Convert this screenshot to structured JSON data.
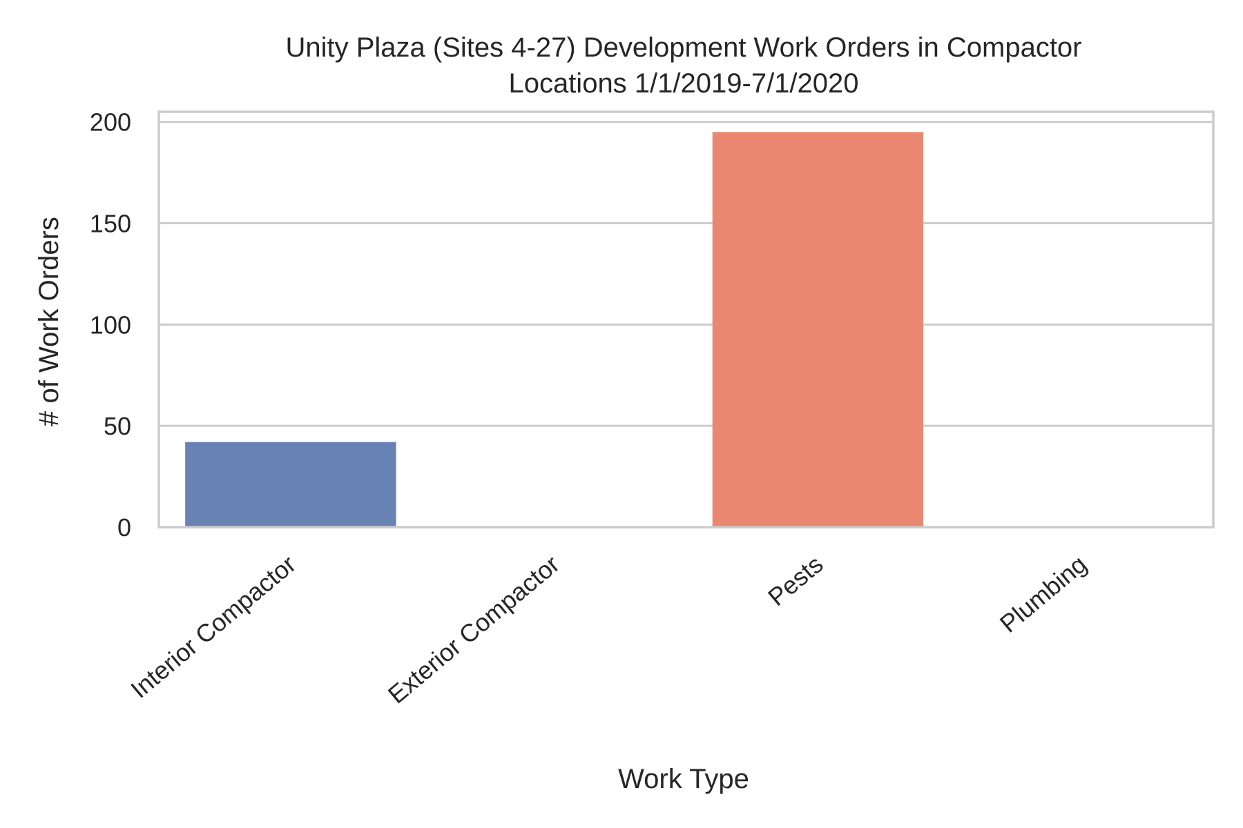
{
  "chart_data": {
    "type": "bar",
    "title": "Unity Plaza (Sites 4-27) Development Work Orders in Compactor",
    "subtitle": "Locations 1/1/2019-7/1/2020",
    "xlabel": "Work Type",
    "ylabel": "# of Work Orders",
    "categories": [
      "Interior Compactor",
      "Exterior Compactor",
      "Pests",
      "Plumbing"
    ],
    "values": [
      42,
      0,
      195,
      0
    ],
    "colors": [
      "#6882b4",
      "#6882b4",
      "#e98771",
      "#e98771"
    ],
    "ylim": [
      0,
      205
    ],
    "yticks": [
      0,
      50,
      100,
      150,
      200
    ],
    "ytick_labels": [
      "0",
      "50",
      "100",
      "150",
      "200"
    ],
    "grid": "horizontal",
    "legend": "none"
  }
}
